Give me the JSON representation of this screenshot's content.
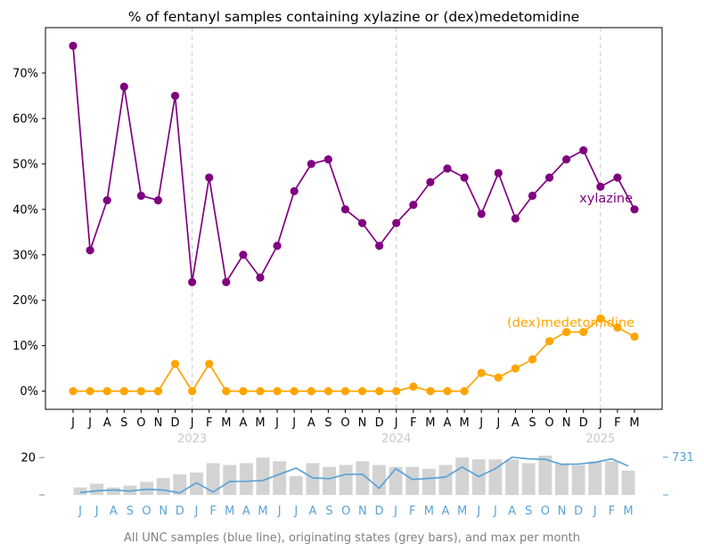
{
  "chart_data": [
    {
      "type": "line",
      "title": "% of fentanyl samples containing xylazine or (dex)medetomidine",
      "xlabel": "",
      "ylabel": "",
      "ylim": [
        -4,
        80
      ],
      "yticks": [
        0,
        10,
        20,
        30,
        40,
        50,
        60,
        70
      ],
      "ytick_labels": [
        "0%",
        "10%",
        "20%",
        "30%",
        "40%",
        "50%",
        "60%",
        "70%"
      ],
      "categories": [
        "J",
        "J",
        "A",
        "S",
        "O",
        "N",
        "D",
        "J",
        "F",
        "M",
        "A",
        "M",
        "J",
        "J",
        "A",
        "S",
        "O",
        "N",
        "D",
        "J",
        "F",
        "M",
        "A",
        "M",
        "J",
        "J",
        "A",
        "S",
        "O",
        "N",
        "D",
        "J",
        "F",
        "M"
      ],
      "year_labels": [
        {
          "label": "2023",
          "index": 7
        },
        {
          "label": "2024",
          "index": 19
        },
        {
          "label": "2025",
          "index": 31
        }
      ],
      "series": [
        {
          "name": "xylazine",
          "label": "xylazine",
          "color": "#800080",
          "values": [
            76,
            31,
            42,
            67,
            43,
            42,
            65,
            24,
            47,
            24,
            30,
            25,
            32,
            44,
            50,
            51,
            40,
            37,
            32,
            37,
            41,
            46,
            49,
            47,
            39,
            48,
            38,
            43,
            47,
            51,
            53,
            45,
            47,
            40
          ]
        },
        {
          "name": "(dex)medetomidine",
          "label": "(dex)medetomidine",
          "color": "#FFA500",
          "values": [
            0,
            0,
            0,
            0,
            0,
            0,
            6,
            0,
            6,
            0,
            0,
            0,
            0,
            0,
            0,
            0,
            0,
            0,
            0,
            0,
            1,
            0,
            0,
            0,
            4,
            3,
            5,
            7,
            11,
            13,
            13,
            16,
            14,
            12
          ]
        }
      ]
    },
    {
      "type": "bar",
      "title": "",
      "caption": "All UNC samples (blue line), originating states (grey bars), and max per month",
      "left_axis": {
        "ticks": [
          0,
          20
        ],
        "tick_labels": [
          "",
          "20"
        ],
        "max": 21
      },
      "right_axis": {
        "ticks": [
          0,
          731
        ],
        "tick_labels": [
          "",
          "731"
        ],
        "max": 760
      },
      "categories": [
        "J",
        "J",
        "A",
        "S",
        "O",
        "N",
        "D",
        "J",
        "F",
        "M",
        "A",
        "M",
        "J",
        "J",
        "A",
        "S",
        "O",
        "N",
        "D",
        "J",
        "F",
        "M",
        "A",
        "M",
        "J",
        "J",
        "A",
        "S",
        "O",
        "N",
        "D",
        "J",
        "F",
        "M"
      ],
      "series": [
        {
          "name": "originating states",
          "kind": "bar",
          "color": "#d3d3d3",
          "values": [
            4,
            6,
            4,
            5,
            7,
            9,
            11,
            12,
            17,
            16,
            17,
            20,
            18,
            10,
            17,
            15,
            16,
            18,
            16,
            15,
            15,
            14,
            16,
            20,
            19,
            19,
            19,
            17,
            21,
            17,
            16,
            18,
            18,
            13
          ]
        },
        {
          "name": "All UNC samples",
          "kind": "line",
          "color": "#5ba3d6",
          "values": [
            45,
            80,
            95,
            75,
            110,
            95,
            40,
            235,
            55,
            260,
            265,
            280,
            400,
            520,
            330,
            315,
            400,
            400,
            130,
            510,
            300,
            320,
            345,
            540,
            355,
            510,
            731,
            700,
            690,
            590,
            600,
            630,
            700,
            560
          ]
        }
      ]
    }
  ]
}
